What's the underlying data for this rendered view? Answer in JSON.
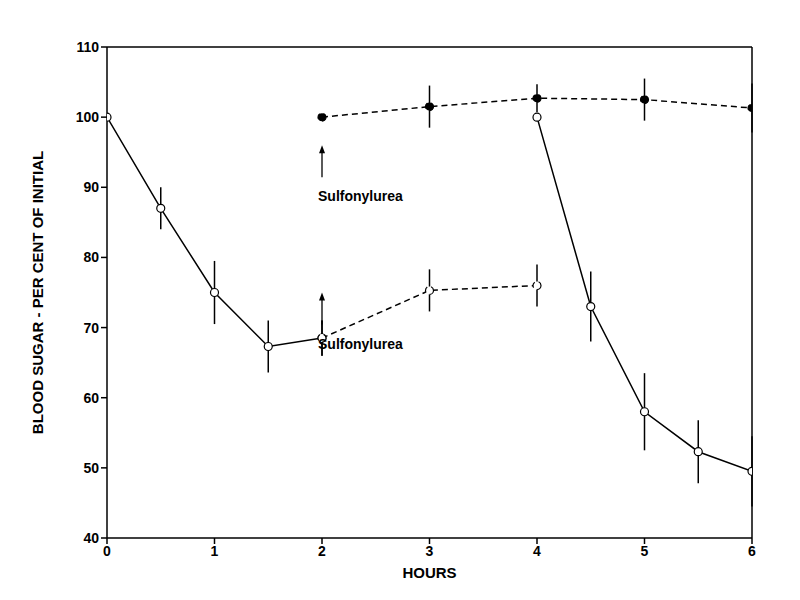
{
  "chart_data": {
    "type": "line",
    "x_label": "HOURS",
    "y_label": "BLOOD SUGAR - PER CENT OF INITIAL",
    "xlim": [
      0,
      6
    ],
    "xticks": [
      0,
      1,
      2,
      3,
      4,
      5,
      6
    ],
    "ylim": [
      40,
      110
    ],
    "yticks": [
      40,
      50,
      60,
      70,
      80,
      90,
      100,
      110
    ],
    "grid": false,
    "series": [
      {
        "color": "#000000",
        "marker": "open_circle",
        "line_style": "solid",
        "x": [
          0,
          0.5,
          1,
          1.5,
          2
        ],
        "values": [
          100,
          87,
          75,
          67.3,
          68.5
        ],
        "errors": [
          null,
          3,
          4.5,
          3.7,
          2.5
        ]
      },
      {
        "color": "#000000",
        "marker": "open_circle",
        "line_style": "dashed",
        "x": [
          2,
          3,
          4
        ],
        "values": [
          68.5,
          75.3,
          76
        ],
        "errors": [
          2.5,
          3,
          3
        ]
      },
      {
        "color": "#000000",
        "marker": "open_circle",
        "line_style": "solid",
        "x": [
          4,
          4.5,
          5,
          5.5,
          6
        ],
        "values": [
          100,
          73,
          58,
          52.3,
          49.5
        ],
        "errors": [
          null,
          5,
          5.5,
          4.5,
          5
        ]
      },
      {
        "color": "#000000",
        "marker": "filled_circle",
        "line_style": "dashed",
        "x": [
          2,
          3,
          4,
          5,
          6
        ],
        "values": [
          100,
          101.5,
          102.7,
          102.5,
          101.3
        ],
        "errors": [
          null,
          3,
          2,
          3,
          3.5
        ]
      }
    ],
    "annotations": [
      {
        "text": "Sulfonylurea",
        "x": 2,
        "y": 96
      },
      {
        "text": "Sulfonylurea",
        "x": 2,
        "y": 75
      }
    ]
  }
}
